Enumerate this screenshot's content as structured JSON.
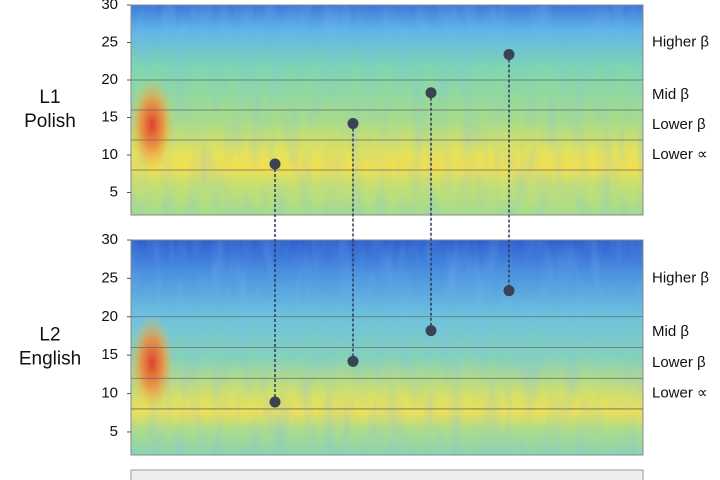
{
  "ylim": [
    2,
    30
  ],
  "yticks": [
    5,
    10,
    15,
    20,
    25,
    30
  ],
  "bands": [
    {
      "label": "Lower ∝",
      "range": [
        8,
        12
      ]
    },
    {
      "label": "Lower β",
      "range": [
        12,
        16
      ]
    },
    {
      "label": "Mid β",
      "range": [
        16,
        20
      ]
    },
    {
      "label": "Higher β",
      "range": [
        20,
        30
      ]
    }
  ],
  "panels": [
    {
      "label": [
        "L1",
        "Polish"
      ],
      "points": [
        8.8,
        14.2,
        18.3,
        23.4
      ]
    },
    {
      "label": [
        "L2",
        "English"
      ],
      "points": [
        8.9,
        14.2,
        18.2,
        23.4
      ]
    }
  ]
}
